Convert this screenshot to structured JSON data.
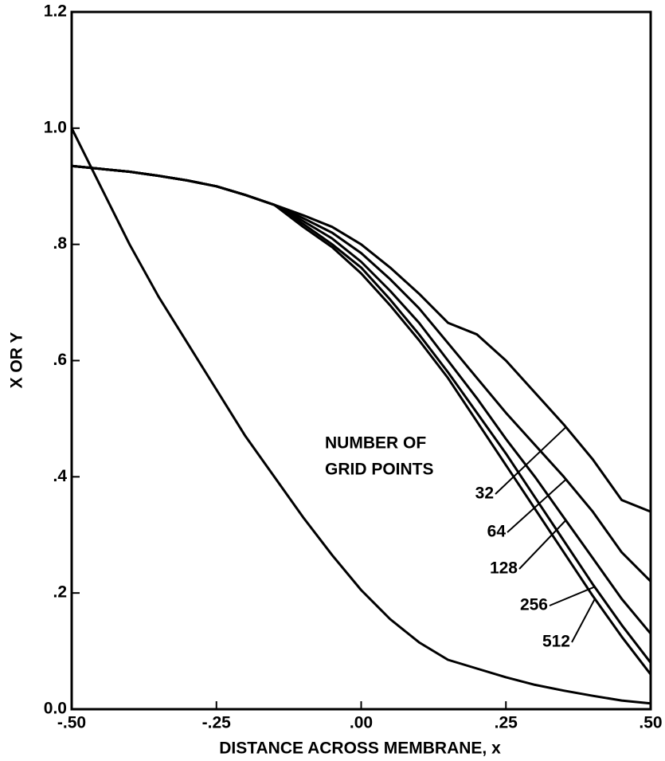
{
  "chart_data": {
    "type": "line",
    "xlabel": "DISTANCE ACROSS MEMBRANE, x",
    "ylabel": "X OR Y",
    "annotation": [
      "NUMBER OF",
      "GRID POINTS"
    ],
    "x": [
      -0.5,
      -0.45,
      -0.4,
      -0.35,
      -0.3,
      -0.25,
      -0.2,
      -0.15,
      -0.1,
      -0.05,
      0,
      0.05,
      0.1,
      0.15,
      0.2,
      0.25,
      0.3,
      0.35,
      0.4,
      0.45,
      0.5
    ],
    "series": [
      {
        "color": "#000000",
        "values": [
          1.0,
          0.9,
          0.8,
          0.71,
          0.63,
          0.55,
          0.47,
          0.4,
          0.33,
          0.265,
          0.205,
          0.155,
          0.115,
          0.085,
          0.07,
          0.055,
          0.042,
          0.032,
          0.023,
          0.015,
          0.01
        ]
      },
      {
        "name": "32",
        "color": "#000000",
        "values": [
          0.935,
          0.93,
          0.925,
          0.918,
          0.91,
          0.9,
          0.885,
          0.868,
          0.85,
          0.83,
          0.8,
          0.76,
          0.715,
          0.665,
          0.645,
          0.6,
          0.545,
          0.49,
          0.43,
          0.36,
          0.34
        ]
      },
      {
        "name": "64",
        "color": "#000000",
        "values": [
          0.935,
          0.93,
          0.925,
          0.918,
          0.91,
          0.9,
          0.885,
          0.868,
          0.845,
          0.82,
          0.785,
          0.74,
          0.69,
          0.63,
          0.57,
          0.51,
          0.455,
          0.4,
          0.34,
          0.27,
          0.22
        ]
      },
      {
        "name": "128",
        "color": "#000000",
        "values": [
          0.935,
          0.93,
          0.925,
          0.918,
          0.91,
          0.9,
          0.885,
          0.868,
          0.84,
          0.81,
          0.77,
          0.72,
          0.665,
          0.6,
          0.535,
          0.465,
          0.4,
          0.33,
          0.26,
          0.19,
          0.13
        ]
      },
      {
        "name": "256",
        "color": "#000000",
        "values": [
          0.935,
          0.93,
          0.925,
          0.918,
          0.91,
          0.9,
          0.885,
          0.868,
          0.835,
          0.8,
          0.76,
          0.705,
          0.645,
          0.58,
          0.51,
          0.44,
          0.365,
          0.29,
          0.215,
          0.145,
          0.08
        ]
      },
      {
        "name": "512",
        "color": "#000000",
        "values": [
          0.935,
          0.93,
          0.925,
          0.918,
          0.91,
          0.9,
          0.885,
          0.868,
          0.83,
          0.795,
          0.75,
          0.695,
          0.635,
          0.57,
          0.495,
          0.42,
          0.345,
          0.27,
          0.195,
          0.125,
          0.06
        ]
      }
    ],
    "xlim": [
      -0.5,
      0.5
    ],
    "ylim": [
      0,
      1.2
    ],
    "xticks": [
      {
        "value": -0.5,
        "label": "-.50"
      },
      {
        "value": -0.25,
        "label": "-.25"
      },
      {
        "value": 0,
        "label": ".00"
      },
      {
        "value": 0.25,
        "label": ".25"
      },
      {
        "value": 0.5,
        "label": ".50"
      }
    ],
    "yticks": [
      {
        "value": 0,
        "label": "0.0"
      },
      {
        "value": 0.2,
        "label": ".2"
      },
      {
        "value": 0.4,
        "label": ".4"
      },
      {
        "value": 0.6,
        "label": ".6"
      },
      {
        "value": 0.8,
        "label": ".8"
      },
      {
        "value": 1.0,
        "label": "1.0"
      },
      1.2
    ],
    "grid": false
  }
}
